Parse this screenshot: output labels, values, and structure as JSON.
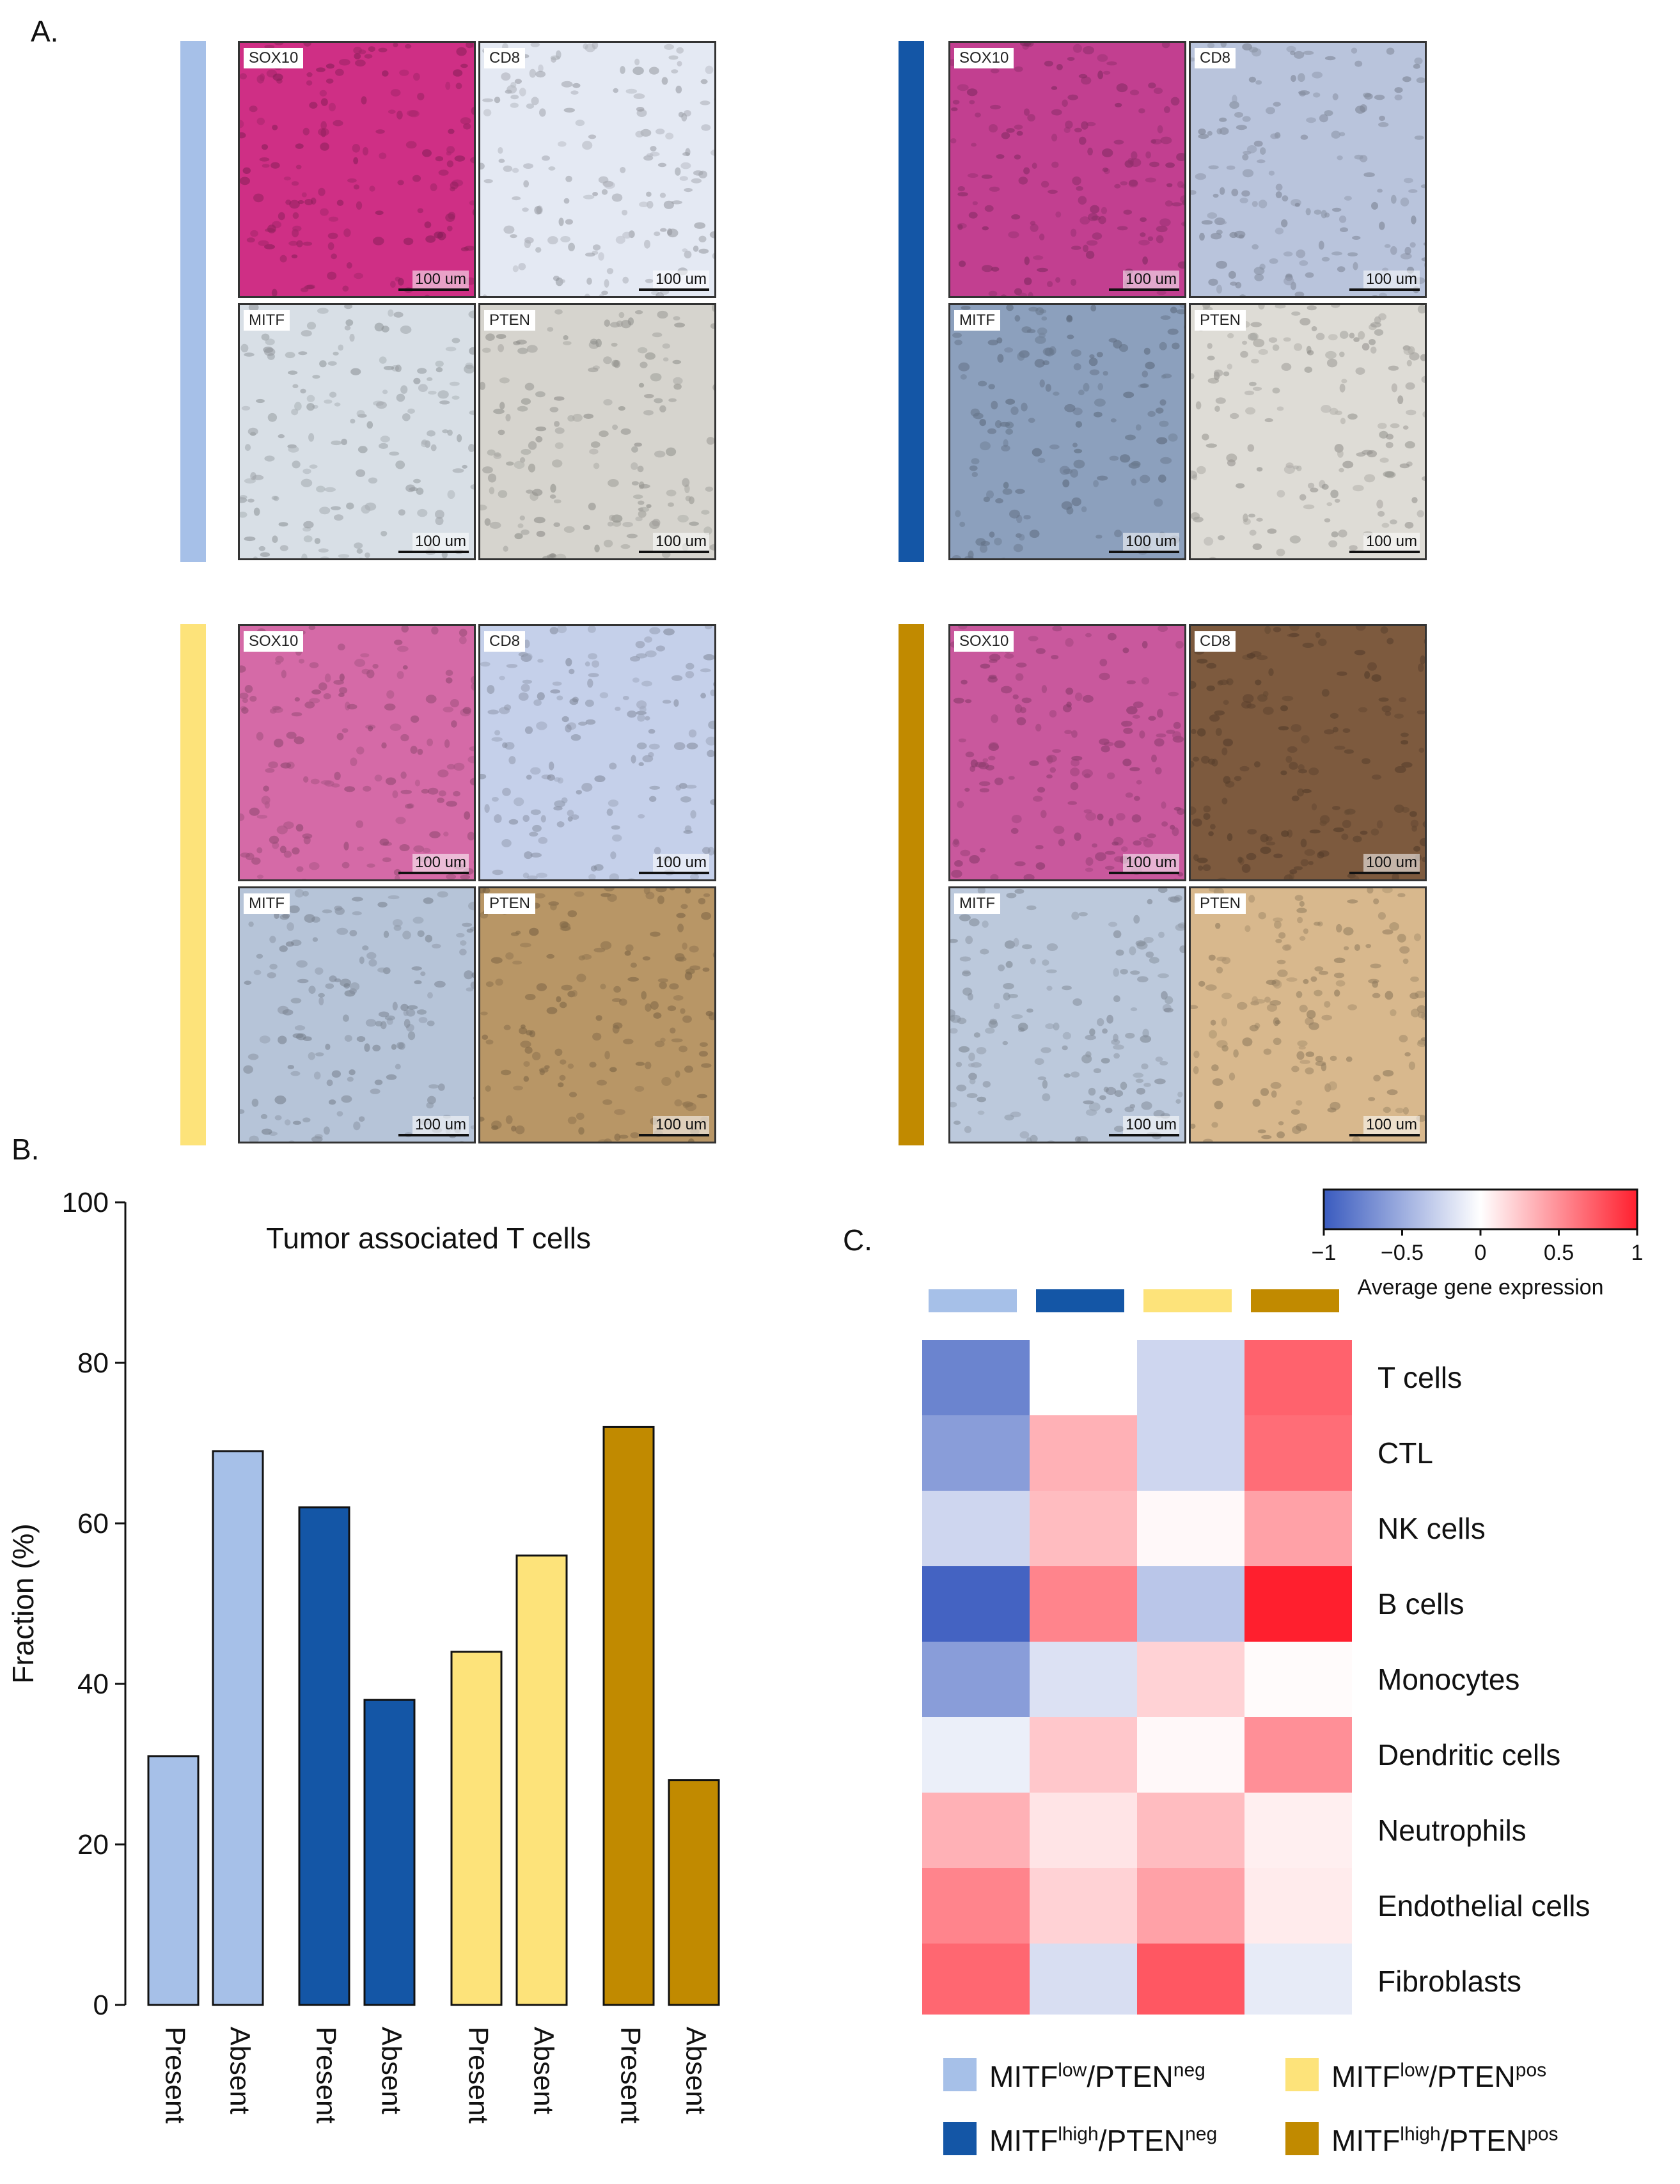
{
  "panels": {
    "a": "A.",
    "b": "B.",
    "c": "C."
  },
  "colors": {
    "mitf_low_pten_neg": "#a6c0e8",
    "mitf_high_pten_neg": "#1456a6",
    "mitf_low_pten_pos": "#fde37a",
    "mitf_high_pten_pos": "#c18a00"
  },
  "microscopy": {
    "scale": "100 um",
    "groups": [
      {
        "group": "mitf_low_pten_neg",
        "stains": [
          "SOX10",
          "CD8",
          "MITF",
          "PTEN"
        ],
        "tones": [
          "#cf2f85",
          "#e4e9f3",
          "#d8dfe6",
          "#d6d4ce"
        ]
      },
      {
        "group": "mitf_high_pten_neg",
        "stains": [
          "SOX10",
          "CD8",
          "MITF",
          "PTEN"
        ],
        "tones": [
          "#c23f90",
          "#b9c4dc",
          "#8ca0bd",
          "#dedcd6"
        ]
      },
      {
        "group": "mitf_low_pten_pos",
        "stains": [
          "SOX10",
          "CD8",
          "MITF",
          "PTEN"
        ],
        "tones": [
          "#d56aa7",
          "#c5d0ea",
          "#b6c4d8",
          "#b89666"
        ]
      },
      {
        "group": "mitf_high_pten_pos",
        "stains": [
          "SOX10",
          "CD8",
          "MITF",
          "PTEN"
        ],
        "tones": [
          "#c9589d",
          "#7d5a3e",
          "#bcc9dc",
          "#d8b88d"
        ]
      }
    ]
  },
  "chart_data": [
    {
      "type": "bar",
      "title": "Tumor associated T cells",
      "ylabel": "Fraction (%)",
      "ylim": [
        0,
        100
      ],
      "yticks": [
        0,
        20,
        40,
        60,
        80,
        100
      ],
      "categories": [
        "Present",
        "Absent",
        "Present",
        "Absent",
        "Present",
        "Absent",
        "Present",
        "Absent"
      ],
      "values": [
        31,
        69,
        62,
        38,
        44,
        56,
        72,
        28
      ],
      "bar_groups": [
        "mitf_low_pten_neg",
        "mitf_low_pten_neg",
        "mitf_high_pten_neg",
        "mitf_high_pten_neg",
        "mitf_low_pten_pos",
        "mitf_low_pten_pos",
        "mitf_high_pten_pos",
        "mitf_high_pten_pos"
      ]
    },
    {
      "type": "heatmap",
      "columns": [
        "mitf_low_pten_neg",
        "mitf_high_pten_neg",
        "mitf_low_pten_pos",
        "mitf_high_pten_pos"
      ],
      "rows": [
        "T cells",
        "CTL",
        "NK cells",
        "B cells",
        "Monocytes",
        "Dendritic cells",
        "Neutrophils",
        "Endothelial cells",
        "Fibroblasts"
      ],
      "values": [
        [
          -0.75,
          0.0,
          -0.25,
          0.7
        ],
        [
          -0.6,
          0.35,
          -0.25,
          0.65
        ],
        [
          -0.25,
          0.3,
          0.03,
          0.42
        ],
        [
          -0.95,
          0.55,
          -0.35,
          1.0
        ],
        [
          -0.6,
          -0.18,
          0.2,
          0.02
        ],
        [
          -0.1,
          0.25,
          0.03,
          0.5
        ],
        [
          0.35,
          0.12,
          0.3,
          0.07
        ],
        [
          0.55,
          0.2,
          0.42,
          0.09
        ],
        [
          0.68,
          -0.2,
          0.75,
          -0.12
        ]
      ],
      "colorbar": {
        "min": -1,
        "max": 1,
        "ticks": [
          -1,
          -0.5,
          0,
          0.5,
          1
        ],
        "tick_labels": [
          "−1",
          "−0.5",
          "0",
          "0.5",
          "1"
        ],
        "label": "Average gene expression",
        "low_color": "#3a5bbf",
        "mid_color": "#ffffff",
        "high_color": "#ff1f2e"
      }
    }
  ],
  "legend": [
    {
      "group": "mitf_low_pten_neg",
      "base1": "MITF",
      "sup1": "low",
      "base2": "/PTEN",
      "sup2": "neg"
    },
    {
      "group": "mitf_low_pten_pos",
      "base1": "MITF",
      "sup1": "low",
      "base2": "/PTEN",
      "sup2": "pos"
    },
    {
      "group": "mitf_high_pten_neg",
      "base1": "MITF",
      "sup1": "lhigh",
      "base2": "/PTEN",
      "sup2": "neg"
    },
    {
      "group": "mitf_high_pten_pos",
      "base1": "MITF",
      "sup1": "lhigh",
      "base2": "/PTEN",
      "sup2": "pos"
    }
  ]
}
